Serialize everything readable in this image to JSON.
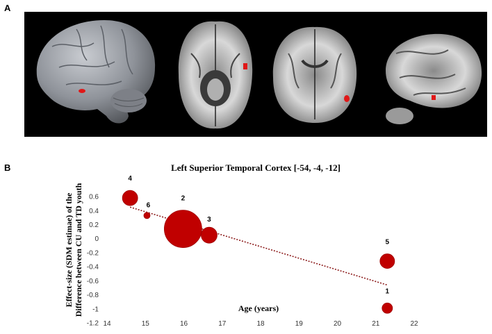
{
  "panel_a": {
    "label": "A"
  },
  "panel_b": {
    "label": "B"
  },
  "brain_views": [
    "lateral-surface-view",
    "axial-slice",
    "coronal-slice",
    "sagittal-slice"
  ],
  "colors": {
    "highlight": "#e01818",
    "bubble": "#c00000",
    "bubble_edge": "#a00000",
    "trendline": "#8b1a1a",
    "background": "#000000"
  },
  "chart_data": {
    "type": "scatter",
    "title": "Left  Superior  Temporal  Cortex  [-54,  -4,  -12]",
    "xlabel": "Age (years)",
    "ylabel": [
      "Effect-size  (SDM  estimae)  of  the",
      "Difference  between  CU  and  TD  youth"
    ],
    "xlim": [
      14,
      22
    ],
    "ylim": [
      -1.2,
      0.7
    ],
    "xticks": [
      "14",
      "15",
      "16",
      "17",
      "18",
      "19",
      "20",
      "21",
      "22"
    ],
    "yticks": [
      "0.6",
      "0.4",
      "0.2",
      "0",
      "-0.2",
      "-0.4",
      "-0.6",
      "-0.8",
      "-1",
      "-1.2"
    ],
    "points": [
      {
        "label": "4",
        "x": 14.6,
        "y": 0.58,
        "size": 11
      },
      {
        "label": "6",
        "x": 15.04,
        "y": 0.33,
        "size": 4.5
      },
      {
        "label": "2",
        "x": 15.98,
        "y": 0.14,
        "size": 27
      },
      {
        "label": "3",
        "x": 16.66,
        "y": 0.05,
        "size": 11.5
      },
      {
        "label": "5",
        "x": 21.3,
        "y": -0.32,
        "size": 10.5
      },
      {
        "label": "1",
        "x": 21.3,
        "y": -0.99,
        "size": 7.5
      }
    ],
    "trendline": {
      "x": [
        14.6,
        21.3
      ],
      "y": [
        0.45,
        -0.66
      ],
      "style": "dotted"
    },
    "grid": false,
    "legend": "none"
  }
}
